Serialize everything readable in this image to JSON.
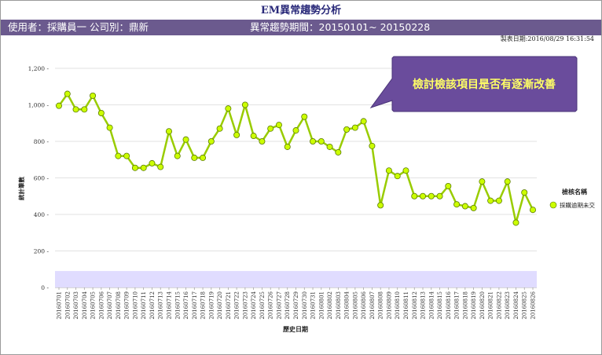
{
  "page": {
    "title": "EM異常趨勢分析",
    "header": {
      "user_info": "使用者：採購員一  公司別：鼎新",
      "period_info": "異常趨勢期間：20150101~ 20150228"
    },
    "print_date": "製表日期:2016/08/29  16:31:54"
  },
  "callout": {
    "text": "檢討檢該項目是否有逐漸改善",
    "fill": "#6a4c9c"
  },
  "chart_data": {
    "type": "line",
    "xlabel": "歷史日期",
    "ylabel": "統計筆數",
    "ylim": [
      0,
      1200
    ],
    "yticks": [
      0,
      200,
      400,
      600,
      800,
      1000,
      1200
    ],
    "ytick_labels": [
      "0",
      "200",
      "400",
      "600",
      "800",
      "1,000",
      "1,200"
    ],
    "grid": true,
    "legend_title": "檢核名稱",
    "legend_position": "right",
    "line_color": "#99cc00",
    "band_color": "#e0dcff",
    "band_range": [
      0,
      90
    ],
    "categories": [
      "20160701",
      "20160702",
      "20160703",
      "20160704",
      "20160705",
      "20160706",
      "20160707",
      "20160708",
      "20160709",
      "20160710",
      "20160711",
      "20160712",
      "20160713",
      "20160714",
      "20160715",
      "20160716",
      "20160717",
      "20160718",
      "20160719",
      "20160720",
      "20160721",
      "20160722",
      "20160723",
      "20160724",
      "20160725",
      "20160726",
      "20160727",
      "20160728",
      "20160729",
      "20160730",
      "20160731",
      "20160801",
      "20160802",
      "20160803",
      "20160804",
      "20160805",
      "20160806",
      "20160807",
      "20160808",
      "20160809",
      "20160810",
      "20160811",
      "20160812",
      "20160813",
      "20160814",
      "20160815",
      "20160816",
      "20160817",
      "20160818",
      "20160819",
      "20160820",
      "20160821",
      "20160822",
      "20160823",
      "20160824",
      "20160825",
      "20160826"
    ],
    "series": [
      {
        "name": "採購逾期未交",
        "values": [
          995,
          1060,
          975,
          975,
          1050,
          955,
          875,
          720,
          720,
          655,
          655,
          680,
          660,
          855,
          720,
          810,
          710,
          710,
          800,
          870,
          980,
          835,
          1000,
          830,
          800,
          870,
          890,
          770,
          860,
          935,
          800,
          800,
          770,
          740,
          865,
          875,
          910,
          775,
          450,
          640,
          610,
          640,
          500,
          500,
          500,
          500,
          555,
          455,
          445,
          435,
          580,
          475,
          475,
          580,
          355,
          520,
          425
        ]
      }
    ]
  }
}
